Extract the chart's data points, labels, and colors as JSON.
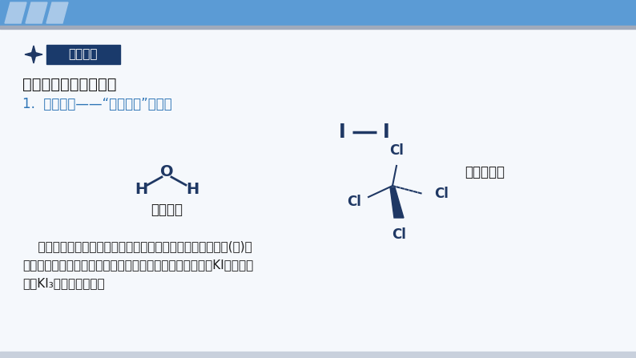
{
  "bg_color": "#eef3f8",
  "header_bg": "#5b9bd5",
  "header_gray_line": "#a0aabb",
  "dark_blue": "#1f3864",
  "medium_blue": "#2e75b6",
  "text_dark": "#1a1a1a",
  "white": "#ffffff",
  "tag_text": "观察思考",
  "tag_bg": "#1a3a6b",
  "title_text": "影响物质溶解性的因素",
  "point1_text": "1.  分子结构——“相似相溶”规律。",
  "label_polar": "极性分子",
  "label_nonpolar": "非极性分子",
  "line1": "    碘和四氯化碳都是非极性分子，水是极性分子。非极性溶质(碘)一",
  "line2": "般能溶于非极性溶剂，而难溶于极性溶剂。后来碘单质又与KI生成可溶",
  "line3": "性盐KI₃，水溶性变强。"
}
